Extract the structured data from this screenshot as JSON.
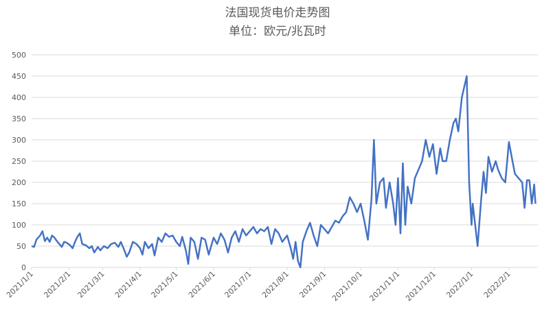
{
  "chart_data": {
    "type": "line",
    "title": "法国现货电价走势图",
    "subtitle": "单位：欧元/兆瓦时",
    "x": [
      "2021/1/1",
      "2021/1/3",
      "2021/1/5",
      "2021/1/8",
      "2021/1/10",
      "2021/1/12",
      "2021/1/14",
      "2021/1/16",
      "2021/1/18",
      "2021/1/20",
      "2021/1/22",
      "2021/1/24",
      "2021/1/26",
      "2021/1/28",
      "2021/1/30",
      "2021/2/2",
      "2021/2/4",
      "2021/2/6",
      "2021/2/8",
      "2021/2/10",
      "2021/2/12",
      "2021/2/15",
      "2021/2/18",
      "2021/2/20",
      "2021/2/22",
      "2021/2/25",
      "2021/2/27",
      "2021/3/2",
      "2021/3/5",
      "2021/3/8",
      "2021/3/11",
      "2021/3/14",
      "2021/3/16",
      "2021/3/19",
      "2021/3/21",
      "2021/3/23",
      "2021/3/26",
      "2021/3/29",
      "2021/4/1",
      "2021/4/3",
      "2021/4/5",
      "2021/4/8",
      "2021/4/11",
      "2021/4/13",
      "2021/4/16",
      "2021/4/19",
      "2021/4/22",
      "2021/4/25",
      "2021/4/28",
      "2021/5/1",
      "2021/5/4",
      "2021/5/6",
      "2021/5/9",
      "2021/5/11",
      "2021/5/13",
      "2021/5/16",
      "2021/5/19",
      "2021/5/22",
      "2021/5/25",
      "2021/5/28",
      "2021/6/1",
      "2021/6/4",
      "2021/6/7",
      "2021/6/10",
      "2021/6/13",
      "2021/6/16",
      "2021/6/19",
      "2021/6/22",
      "2021/6/25",
      "2021/6/28",
      "2021/7/1",
      "2021/7/4",
      "2021/7/7",
      "2021/7/10",
      "2021/7/13",
      "2021/7/16",
      "2021/7/19",
      "2021/7/22",
      "2021/7/25",
      "2021/7/28",
      "2021/8/1",
      "2021/8/4",
      "2021/8/6",
      "2021/8/8",
      "2021/8/10",
      "2021/8/12",
      "2021/8/14",
      "2021/8/17",
      "2021/8/20",
      "2021/8/23",
      "2021/8/26",
      "2021/8/29",
      "2021/9/1",
      "2021/9/4",
      "2021/9/7",
      "2021/9/10",
      "2021/9/13",
      "2021/9/16",
      "2021/9/19",
      "2021/9/22",
      "2021/9/25",
      "2021/9/28",
      "2021/10/1",
      "2021/10/4",
      "2021/10/7",
      "2021/10/10",
      "2021/10/12",
      "2021/10/14",
      "2021/10/17",
      "2021/10/20",
      "2021/10/22",
      "2021/10/25",
      "2021/10/28",
      "2021/10/30",
      "2021/11/1",
      "2021/11/3",
      "2021/11/5",
      "2021/11/7",
      "2021/11/9",
      "2021/11/12",
      "2021/11/15",
      "2021/11/18",
      "2021/11/21",
      "2021/11/24",
      "2021/11/27",
      "2021/11/30",
      "2021/12/3",
      "2021/12/6",
      "2021/12/8",
      "2021/12/11",
      "2021/12/14",
      "2021/12/17",
      "2021/12/19",
      "2021/12/21",
      "2021/12/24",
      "2021/12/28",
      "2021/12/30",
      "2022/1/1",
      "2022/1/2",
      "2022/1/4",
      "2022/1/6",
      "2022/1/9",
      "2022/1/11",
      "2022/1/13",
      "2022/1/15",
      "2022/1/18",
      "2022/1/21",
      "2022/1/23",
      "2022/1/26",
      "2022/1/29",
      "2022/2/1",
      "2022/2/4",
      "2022/2/6",
      "2022/2/9",
      "2022/2/12",
      "2022/2/14",
      "2022/2/16",
      "2022/2/18",
      "2022/2/20",
      "2022/2/22",
      "2022/2/23"
    ],
    "series": [
      {
        "color": "#4472c4",
        "values": [
          50,
          48,
          65,
          75,
          85,
          62,
          70,
          60,
          75,
          70,
          62,
          55,
          48,
          60,
          58,
          52,
          45,
          60,
          72,
          80,
          55,
          52,
          45,
          50,
          35,
          48,
          40,
          50,
          45,
          55,
          58,
          48,
          60,
          40,
          25,
          35,
          60,
          55,
          45,
          30,
          60,
          45,
          55,
          28,
          70,
          60,
          80,
          72,
          75,
          60,
          50,
          72,
          40,
          8,
          70,
          60,
          20,
          70,
          65,
          30,
          70,
          55,
          80,
          65,
          35,
          70,
          85,
          60,
          90,
          75,
          85,
          95,
          80,
          90,
          85,
          95,
          55,
          90,
          80,
          60,
          75,
          45,
          20,
          60,
          15,
          0,
          60,
          85,
          105,
          75,
          50,
          100,
          90,
          80,
          95,
          110,
          105,
          120,
          130,
          165,
          150,
          130,
          150,
          110,
          65,
          160,
          300,
          150,
          200,
          210,
          140,
          200,
          150,
          100,
          210,
          80,
          245,
          100,
          190,
          150,
          210,
          230,
          250,
          300,
          260,
          290,
          220,
          280,
          250,
          250,
          300,
          340,
          350,
          320,
          400,
          450,
          200,
          100,
          150,
          100,
          50,
          160,
          225,
          175,
          260,
          225,
          250,
          230,
          210,
          200,
          295,
          250,
          220,
          210,
          200,
          140,
          205,
          205,
          150,
          195,
          150
        ]
      }
    ],
    "xlim": [
      "2021/1/1",
      "2022/2/25"
    ],
    "xticks": [
      "2021/1/1",
      "2021/2/1",
      "2021/3/1",
      "2021/4/1",
      "2021/5/1",
      "2021/6/1",
      "2021/7/1",
      "2021/8/1",
      "2021/9/1",
      "2021/10/1",
      "2021/11/1",
      "2021/12/1",
      "2022/1/1",
      "2022/2/1"
    ],
    "ylim": [
      0,
      500
    ],
    "yticks": [
      0,
      50,
      100,
      150,
      200,
      250,
      300,
      350,
      400,
      450,
      500
    ],
    "grid": true
  }
}
